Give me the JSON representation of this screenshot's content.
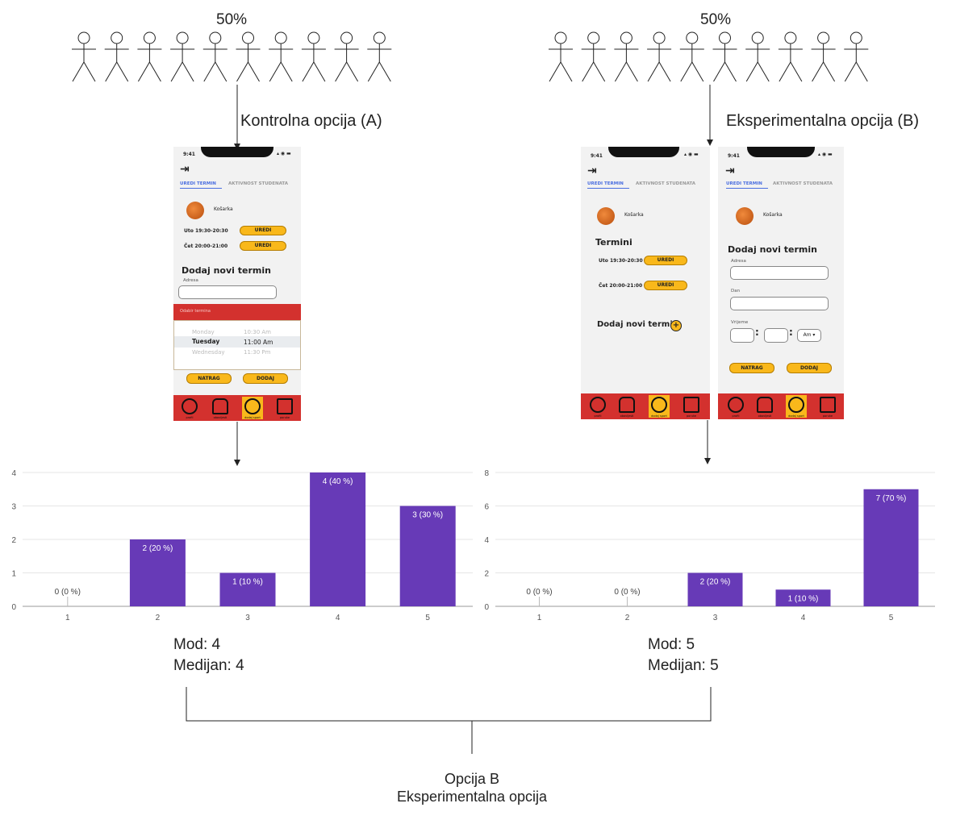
{
  "groups": {
    "left": {
      "percent": "50%",
      "label": "Kontrolna opcija (A)",
      "stat_mode": "Mod: 4",
      "stat_median": "Medijan: 4"
    },
    "right": {
      "percent": "50%",
      "label": "Eksperimentalna opcija (B)",
      "stat_mode": "Mod: 5",
      "stat_median": "Medijan: 5"
    }
  },
  "conclusion": {
    "line1": "Opcija B",
    "line2": "Eksperimentalna opcija"
  },
  "phone": {
    "time": "9:41",
    "tab_active": "UREDI TERMIN",
    "tab_other": "AKTIVNOST STUDENATA",
    "sport": "Košarka",
    "slot1": "Uto 19:30-20:30",
    "slot2": "Čet 20:00-21:00",
    "edit": "UREDI",
    "termini": "Termini",
    "add_new": "Dodaj novi termin",
    "adresa": "Adresa",
    "dan": "Dan",
    "vrijeme": "Vrijeme",
    "ampm": "Am ▾",
    "picker_header": "Odabir termina",
    "picker_rows": [
      {
        "day": "Monday",
        "time": "10:30 Am"
      },
      {
        "day": "Tuesday",
        "time": "11:00 Am"
      },
      {
        "day": "Wednesday",
        "time": "11:30 Pm"
      }
    ],
    "back": "NATRAG",
    "add": "DODAJ",
    "nav": [
      "profil",
      "obavijesti",
      "dodaj sport",
      "poruke"
    ],
    "colors": {
      "accent": "#f9b81b",
      "red": "#d3312e",
      "tab": "#4a6ee0"
    }
  },
  "chart_data": [
    {
      "type": "bar",
      "categories": [
        "1",
        "2",
        "3",
        "4",
        "5"
      ],
      "values": [
        0,
        2,
        1,
        4,
        3
      ],
      "labels": [
        "0 (0 %)",
        "2 (20 %)",
        "1 (10 %)",
        "4 (40 %)",
        "3 (30 %)"
      ],
      "ylim": [
        0,
        4
      ],
      "yticks": [
        "0",
        "1",
        "2",
        "3",
        "4"
      ],
      "title": "",
      "xlabel": "",
      "ylabel": "",
      "grid": true,
      "color": "#673ab7"
    },
    {
      "type": "bar",
      "categories": [
        "1",
        "2",
        "3",
        "4",
        "5"
      ],
      "values": [
        0,
        0,
        2,
        1,
        7
      ],
      "labels": [
        "0 (0 %)",
        "0 (0 %)",
        "2 (20 %)",
        "1 (10 %)",
        "7 (70 %)"
      ],
      "ylim": [
        0,
        8
      ],
      "yticks": [
        "0",
        "2",
        "4",
        "6",
        "8"
      ],
      "title": "",
      "xlabel": "",
      "ylabel": "",
      "grid": true,
      "color": "#673ab7"
    }
  ]
}
